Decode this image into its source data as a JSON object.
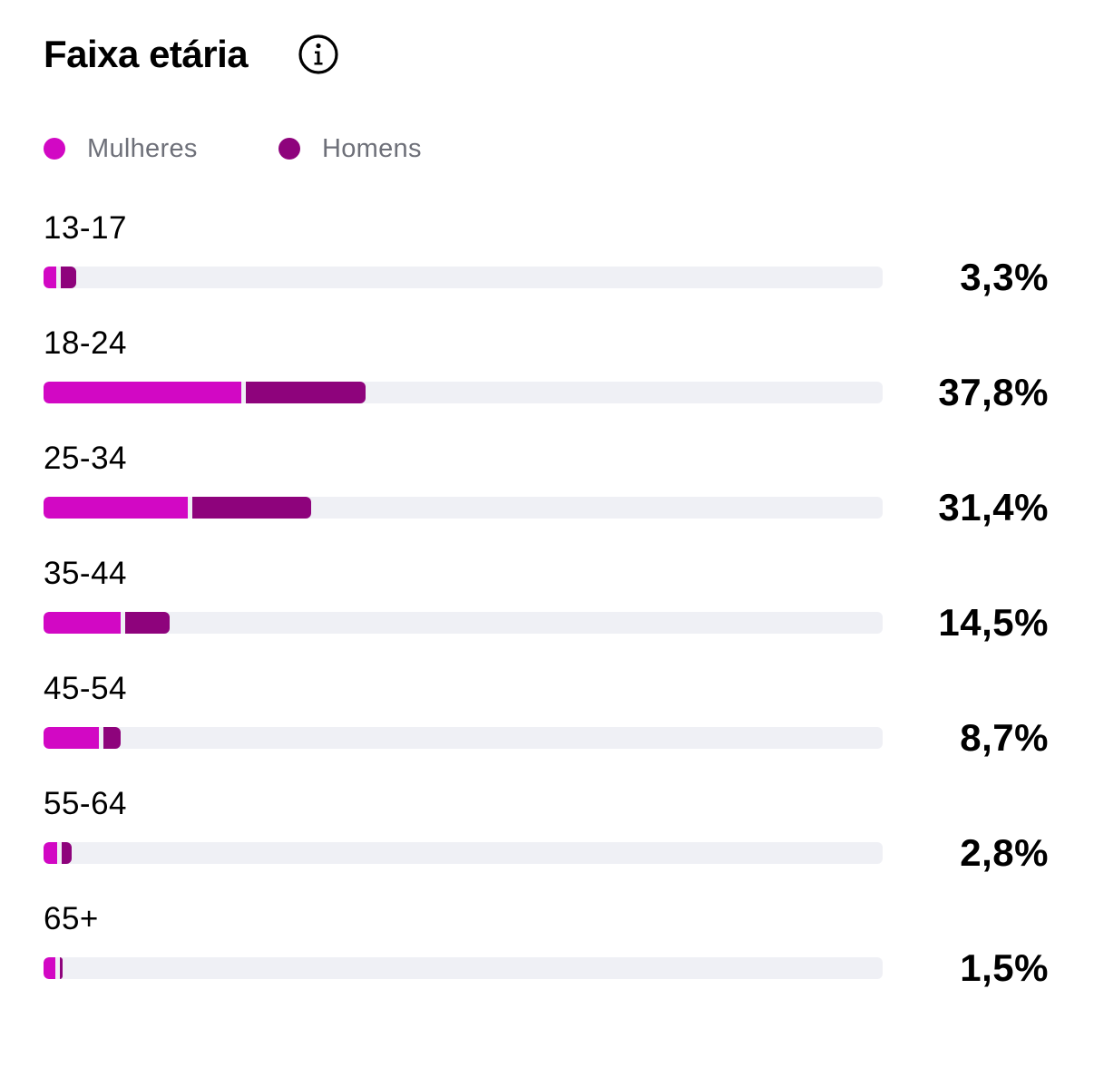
{
  "header": {
    "title": "Faixa etária",
    "info_icon": "info-circle-icon"
  },
  "colors": {
    "women": "#d208c4",
    "men": "#8e037c",
    "track": "#eff0f5"
  },
  "chart_data": {
    "type": "bar",
    "stacked": true,
    "orientation": "horizontal",
    "max_value": 100,
    "legend": [
      "Mulheres",
      "Homens"
    ],
    "categories": [
      "13-17",
      "18-24",
      "25-34",
      "35-44",
      "45-54",
      "55-64",
      "65+"
    ],
    "series": [
      {
        "name": "Mulheres",
        "values": [
          1.5,
          23.6,
          17.2,
          9.2,
          6.6,
          1.6,
          1.4
        ]
      },
      {
        "name": "Homens",
        "values": [
          1.8,
          14.2,
          14.2,
          5.3,
          2.1,
          1.2,
          0.1
        ]
      }
    ],
    "totals": [
      "3,3%",
      "37,8%",
      "31,4%",
      "14,5%",
      "8,7%",
      "2,8%",
      "1,5%"
    ]
  }
}
